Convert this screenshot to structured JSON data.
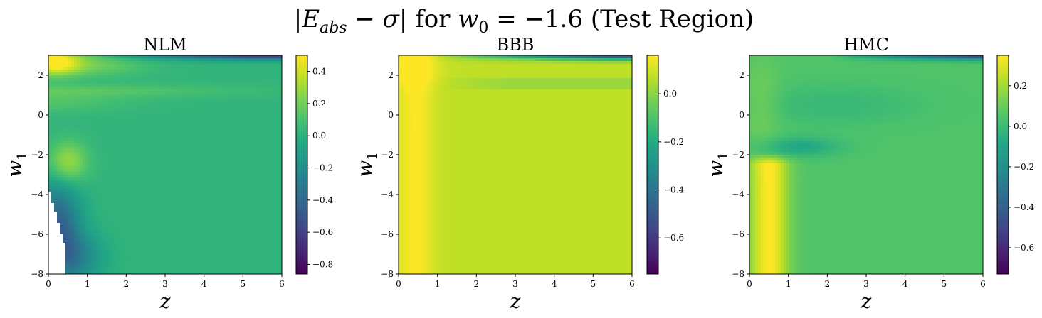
{
  "figure": {
    "suptitle": "|E_abs − σ| for w₀ = −1.6 (Test Region)",
    "suptitle_parts": {
      "bar_open": "|",
      "e": "E",
      "abs": "abs",
      "minus_sigma": " − σ",
      "bar_close": "|",
      "for_text": " for ",
      "w": "w",
      "zero": "0",
      "eq": " = −1.6 (Test Region)"
    }
  },
  "chart_data": [
    {
      "type": "heatmap",
      "title": "NLM",
      "xlabel": "z",
      "ylabel_main": "w",
      "ylabel_sub": "1",
      "xlim": [
        0,
        6
      ],
      "ylim": [
        -8,
        3
      ],
      "xticks": [
        0,
        1,
        2,
        3,
        4,
        5,
        6
      ],
      "yticks": [
        -8,
        -6,
        -4,
        -2,
        0,
        2
      ],
      "xtick_labels": [
        "0",
        "1",
        "2",
        "3",
        "4",
        "5",
        "6"
      ],
      "ytick_labels": [
        "−8",
        "−6",
        "−4",
        "−2",
        "0",
        "2"
      ],
      "colormap": "viridis",
      "colorbar": {
        "vmin": -0.86,
        "vmax": 0.5,
        "ticks": [
          -0.8,
          -0.6,
          -0.4,
          -0.2,
          0.0,
          0.2,
          0.4
        ],
        "tick_labels": [
          "−0.8",
          "−0.6",
          "−0.4",
          "−0.2",
          "0.0",
          "0.2",
          "0.4"
        ]
      },
      "features": {
        "base": 0.02,
        "top_band": [
          2.75,
          0.0,
          -0.86
        ],
        "hot_topleft": 0.5,
        "ridge_upper": 0.1,
        "blob_center": [
          0.5,
          -2.4
        ],
        "blob_value": 0.32,
        "low_left": -0.35,
        "masked_staircase": true
      }
    },
    {
      "type": "heatmap",
      "title": "BBB",
      "xlabel": "z",
      "ylabel_main": "w",
      "ylabel_sub": "1",
      "xlim": [
        0,
        6
      ],
      "ylim": [
        -8,
        3
      ],
      "xticks": [
        0,
        1,
        2,
        3,
        4,
        5,
        6
      ],
      "yticks": [
        -8,
        -6,
        -4,
        -2,
        0,
        2
      ],
      "xtick_labels": [
        "0",
        "1",
        "2",
        "3",
        "4",
        "5",
        "6"
      ],
      "ytick_labels": [
        "−8",
        "−6",
        "−4",
        "−2",
        "0",
        "2"
      ],
      "colormap": "viridis",
      "colorbar": {
        "vmin": -0.75,
        "vmax": 0.16,
        "ticks": [
          -0.6,
          -0.4,
          -0.2,
          0.0
        ],
        "tick_labels": [
          "−0.6",
          "−0.4",
          "−0.2",
          "0.0"
        ]
      },
      "features": {
        "base": 0.07,
        "left_column_peak": 0.16,
        "left_column_center_z": 0.45,
        "top_band": [
          2.9,
          -0.2,
          -0.75
        ]
      }
    },
    {
      "type": "heatmap",
      "title": "HMC",
      "xlabel": "z",
      "ylabel_main": "w",
      "ylabel_sub": "1",
      "xlim": [
        0,
        6
      ],
      "ylim": [
        -8,
        3
      ],
      "xticks": [
        0,
        1,
        2,
        3,
        4,
        5,
        6
      ],
      "yticks": [
        -8,
        -6,
        -4,
        -2,
        0,
        2
      ],
      "xtick_labels": [
        "0",
        "1",
        "2",
        "3",
        "4",
        "5",
        "6"
      ],
      "ytick_labels": [
        "−8",
        "−6",
        "−4",
        "−2",
        "0",
        "2"
      ],
      "colormap": "viridis",
      "colorbar": {
        "vmin": -0.73,
        "vmax": 0.35,
        "ticks": [
          -0.6,
          -0.4,
          -0.2,
          0.0,
          0.2
        ],
        "tick_labels": [
          "−0.6",
          "−0.4",
          "−0.2",
          "0.0",
          "0.2"
        ]
      },
      "features": {
        "base": 0.05,
        "left_column_peak": 0.35,
        "left_column_center_z": 0.5,
        "trough_center": [
          1.3,
          -1.6
        ],
        "top_band": [
          2.9,
          -0.2,
          -0.73
        ]
      }
    }
  ]
}
